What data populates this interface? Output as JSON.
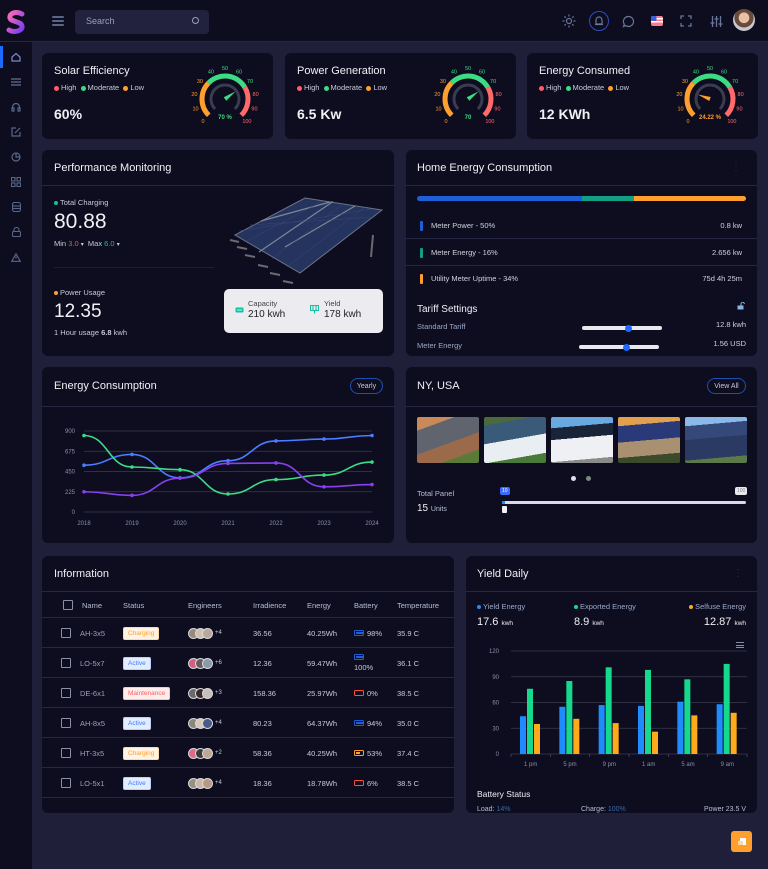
{
  "header": {
    "search_placeholder": "Search",
    "icons": [
      "sun-icon",
      "bell-icon",
      "chat-icon",
      "us-flag-icon",
      "fullscreen-icon",
      "sliders-icon",
      "avatar"
    ]
  },
  "sidebar": {
    "items": [
      "home",
      "list",
      "headphones",
      "edit",
      "pie-chart",
      "grid",
      "database",
      "lock",
      "warning"
    ],
    "active": "home"
  },
  "gauges": [
    {
      "title": "Solar Efficiency",
      "value": "60%",
      "gauge_label": "70 %",
      "needle_pct": 70,
      "needle_color": "#3ddc84",
      "label_color": "#3ddc84"
    },
    {
      "title": "Power Generation",
      "value": "6.5 Kw",
      "gauge_label": "70",
      "needle_pct": 70,
      "needle_color": "#3ddc84",
      "label_color": "#3ddc84"
    },
    {
      "title": "Energy Consumed",
      "value": "12 KWh",
      "gauge_label": "24.22 %",
      "needle_pct": 24.22,
      "needle_color": "#ff9f2e",
      "label_color": "#ff9f2e"
    }
  ],
  "gauge_legend": {
    "high": "High",
    "moderate": "Moderate",
    "low": "Low"
  },
  "gauge_ticks": [
    "0",
    "10",
    "20",
    "30",
    "40",
    "50",
    "60",
    "70",
    "80",
    "90",
    "100"
  ],
  "performance": {
    "title": "Performance Monitoring",
    "total_charging_label": "Total Charging",
    "total_charging_value": "80.88",
    "min_label": "Min",
    "min_value": "3.0",
    "max_label": "Max",
    "max_value": "6.0",
    "power_usage_label": "Power Usage",
    "power_usage_value": "12.35",
    "hour_usage_prefix": "1 Hour usage",
    "hour_usage_value": "6.8",
    "hour_usage_unit": "kwh",
    "capacity_label": "Capacity",
    "capacity_value": "210 kwh",
    "yield_label": "Yield",
    "yield_value": "178 kwh"
  },
  "home_energy": {
    "title": "Home Energy Consumption",
    "bar": [
      {
        "pct": 50,
        "color": "#1e5fd8"
      },
      {
        "pct": 16,
        "color": "#12a085"
      },
      {
        "pct": 34,
        "color": "#ff9f2e"
      }
    ],
    "rows": [
      {
        "label": "Meter Power - 50%",
        "value": "0.8 kw",
        "color": "#1e5fd8"
      },
      {
        "label": "Meter Energy - 16%",
        "value": "2.656 kw",
        "color": "#12a085"
      },
      {
        "label": "Utility Meter Uptime - 34%",
        "value": "75d 4h 25m",
        "color": "#ff9f2e"
      }
    ],
    "tariff_title": "Tariff Settings",
    "tariff": [
      {
        "label": "Standard Tariff",
        "value": "12.8 kwh"
      },
      {
        "label": "Meter Energy",
        "value": "1.56 USD"
      }
    ]
  },
  "energy_consumption": {
    "title": "Energy Consumption",
    "filter_label": "Yearly"
  },
  "chart_data": [
    {
      "type": "line",
      "title": "Energy Consumption",
      "categories": [
        "2018",
        "2019",
        "2020",
        "2021",
        "2022",
        "2023",
        "2024"
      ],
      "series": [
        {
          "name": "Series 1 (blue)",
          "color": "#4a7dff",
          "values": [
            520,
            640,
            380,
            570,
            790,
            810,
            850
          ]
        },
        {
          "name": "Series 2 (green)",
          "color": "#3ddc84",
          "values": [
            850,
            500,
            470,
            200,
            360,
            410,
            555
          ]
        },
        {
          "name": "Series 3 (purple)",
          "color": "#8a3ff0",
          "values": [
            225,
            185,
            375,
            540,
            545,
            280,
            305
          ]
        }
      ],
      "yticks": [
        0,
        225,
        450,
        675,
        900
      ],
      "ylim": [
        0,
        900
      ],
      "grid": true
    },
    {
      "type": "bar",
      "title": "Yield Daily",
      "categories": [
        "1 pm",
        "5 pm",
        "9 pm",
        "1 am",
        "5 am",
        "9 am"
      ],
      "series": [
        {
          "name": "Yield Energy",
          "color": "#1e8cff",
          "values": [
            44,
            55,
            57,
            56,
            61,
            58
          ]
        },
        {
          "name": "Exported Energy",
          "color": "#16d98e",
          "values": [
            76,
            85,
            101,
            98,
            87,
            105
          ]
        },
        {
          "name": "Selfuse Energy",
          "color": "#ffaa1a",
          "values": [
            35,
            41,
            36,
            26,
            45,
            48
          ]
        }
      ],
      "yticks": [
        0,
        30,
        60,
        90,
        120
      ],
      "ylim": [
        0,
        120
      ],
      "grid": true
    }
  ],
  "location": {
    "title": "NY, USA",
    "view_all_label": "View All",
    "total_panel_label": "Total Panel",
    "total_panel_value": "15",
    "units_label": "Units",
    "slider_min_tag": "10",
    "slider_max_tag": "100"
  },
  "information": {
    "title": "Information",
    "columns": [
      "Name",
      "Status",
      "Engineers",
      "Irradience",
      "Energy",
      "Battery",
      "Temperature"
    ],
    "rows": [
      {
        "name": "AH-3x5",
        "status": "Charging",
        "extra": "+4",
        "irradience": "36.56",
        "energy": "40.25Wh",
        "battery": "98%",
        "battery_color": "#1e5fd8",
        "temp": "35.9 C"
      },
      {
        "name": "LO-5x7",
        "status": "Active",
        "extra": "+6",
        "irradience": "12.36",
        "energy": "59.47Wh",
        "battery": "100%",
        "battery_color": "#1e5fd8",
        "temp": "36.1 C"
      },
      {
        "name": "DE-6x1",
        "status": "Maintenance",
        "extra": "+3",
        "irradience": "158.36",
        "energy": "25.97Wh",
        "battery": "0%",
        "battery_color": "#ff4d3a",
        "temp": "38.5 C"
      },
      {
        "name": "AH-8x5",
        "status": "Active",
        "extra": "+4",
        "irradience": "80.23",
        "energy": "64.37Wh",
        "battery": "94%",
        "battery_color": "#1e5fd8",
        "temp": "35.0 C"
      },
      {
        "name": "HT-3x5",
        "status": "Charging",
        "extra": "+2",
        "irradience": "58.36",
        "energy": "40.25Wh",
        "battery": "53%",
        "battery_color": "#ff9f2e",
        "temp": "37.4 C"
      },
      {
        "name": "LO-5x1",
        "status": "Active",
        "extra": "+4",
        "irradience": "18.36",
        "energy": "18.78Wh",
        "battery": "6%",
        "battery_color": "#ff4d3a",
        "temp": "38.5 C"
      }
    ]
  },
  "yield_daily": {
    "title": "Yield Daily",
    "stats": [
      {
        "label": "Yield Energy",
        "value": "17.6",
        "unit": "kwh",
        "color": "#1e8cff"
      },
      {
        "label": "Exported Energy",
        "value": "8.9",
        "unit": "kwh",
        "color": "#16d98e"
      },
      {
        "label": "Selfuse Energy",
        "value": "12.87",
        "unit": "kwh",
        "color": "#ffaa1a"
      }
    ],
    "battery_title": "Battery Status",
    "load_label": "Load:",
    "load_value": "14%",
    "charge_label": "Charge:",
    "charge_value": "100%",
    "power_label": "Power 23.5 V"
  }
}
